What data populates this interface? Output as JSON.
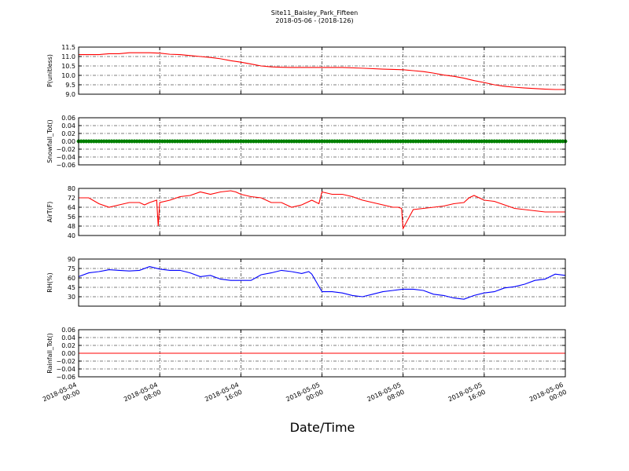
{
  "figure": {
    "title": "Site11_Baisley_Park_Fifteen",
    "subtitle": "2018-05-06 - (2018-126)",
    "xlabel": "Date/Time"
  },
  "chart_data": [
    {
      "type": "line",
      "ylabel": "P(unitless)",
      "color": "#ff0000",
      "ylim": [
        9.0,
        11.5
      ],
      "yticks": [
        "9.0",
        "9.5",
        "10.0",
        "10.5",
        "11.0",
        "11.5"
      ],
      "grid": true,
      "xlim_hours": [
        0,
        48
      ],
      "x_hours": [
        0,
        2,
        3,
        4,
        5,
        6,
        7,
        8,
        9,
        10,
        11,
        12,
        13,
        14,
        15,
        16,
        17,
        18,
        19,
        20,
        21,
        22,
        23,
        24,
        26,
        28,
        30,
        32,
        33,
        34,
        35,
        36,
        37,
        38,
        39,
        40,
        41,
        42,
        43,
        44,
        45,
        46,
        47,
        48
      ],
      "values": [
        11.1,
        11.1,
        11.15,
        11.15,
        11.2,
        11.2,
        11.2,
        11.18,
        11.12,
        11.1,
        11.05,
        11.0,
        10.95,
        10.88,
        10.78,
        10.7,
        10.6,
        10.5,
        10.45,
        10.43,
        10.42,
        10.42,
        10.42,
        10.42,
        10.42,
        10.38,
        10.33,
        10.3,
        10.25,
        10.2,
        10.12,
        10.02,
        9.95,
        9.85,
        9.72,
        9.62,
        9.5,
        9.42,
        9.37,
        9.33,
        9.3,
        9.27,
        9.25,
        9.25
      ]
    },
    {
      "type": "scatter",
      "ylabel": "Snowfall_Tot()",
      "color": "#008000",
      "ylim": [
        -0.06,
        0.06
      ],
      "yticks": [
        "−0.06",
        "−0.04",
        "−0.02",
        "0.00",
        "0.02",
        "0.04",
        "0.06"
      ],
      "grid": true,
      "xlim_hours": [
        0,
        48
      ],
      "constant_value": 0.0,
      "interval_minutes": 15
    },
    {
      "type": "line",
      "ylabel": "AirT(F)",
      "color": "#ff0000",
      "ylim": [
        40,
        80
      ],
      "yticks": [
        "40",
        "48",
        "56",
        "64",
        "72",
        "80"
      ],
      "grid": true,
      "xlim_hours": [
        0,
        48
      ],
      "x_hours": [
        0,
        1,
        2,
        3,
        4,
        5,
        6,
        6.5,
        7,
        7.7,
        7.85,
        8,
        9,
        10,
        11,
        12,
        13,
        14,
        15,
        15.5,
        16,
        17,
        18,
        19,
        20,
        21,
        22,
        23,
        23.7,
        24,
        25,
        26,
        27,
        28,
        29,
        30,
        31,
        31.5,
        31.85,
        32,
        33,
        34,
        35,
        36,
        37,
        38,
        38.5,
        39,
        40,
        41,
        42,
        43,
        44,
        45,
        46,
        47,
        48
      ],
      "values": [
        72,
        72,
        67,
        64,
        66,
        68,
        68,
        66,
        68,
        70,
        48,
        68,
        70,
        73,
        74,
        77,
        75,
        77,
        78,
        77,
        75,
        73,
        72,
        68,
        68,
        64,
        66,
        70,
        67,
        77,
        75,
        75,
        73,
        70,
        68,
        66,
        64,
        64,
        63,
        46,
        62,
        63,
        64,
        65,
        67,
        68,
        72,
        74,
        70,
        69,
        66,
        63,
        62,
        61,
        60,
        60,
        60
      ]
    },
    {
      "type": "line",
      "ylabel": "RH(%)",
      "color": "#0000ff",
      "ylim": [
        15,
        90
      ],
      "yticks": [
        "30",
        "45",
        "60",
        "75",
        "90"
      ],
      "grid": true,
      "xlim_hours": [
        0,
        48
      ],
      "x_hours": [
        0,
        1,
        2,
        3,
        4,
        5,
        6,
        7,
        8,
        9,
        10,
        11,
        12,
        13,
        14,
        15,
        16,
        17,
        18,
        19,
        20,
        21,
        22,
        22.7,
        23,
        24,
        25,
        26,
        27,
        28,
        29,
        30,
        31,
        32,
        33,
        34,
        35,
        36,
        37,
        38,
        39,
        40,
        41,
        42,
        43,
        44,
        45,
        46,
        47,
        48
      ],
      "values": [
        62,
        68,
        70,
        73,
        72,
        71,
        72,
        78,
        74,
        72,
        72,
        68,
        62,
        64,
        58,
        56,
        56,
        56,
        65,
        68,
        72,
        70,
        67,
        70,
        66,
        38,
        38,
        36,
        32,
        30,
        34,
        38,
        40,
        42,
        42,
        40,
        34,
        32,
        28,
        26,
        32,
        36,
        38,
        44,
        46,
        50,
        56,
        58,
        66,
        64
      ]
    },
    {
      "type": "line",
      "ylabel": "Rainfall_Tot()",
      "color": "#ff0000",
      "ylim": [
        -0.06,
        0.06
      ],
      "yticks": [
        "−0.06",
        "−0.04",
        "−0.02",
        "0.00",
        "0.02",
        "0.04",
        "0.06"
      ],
      "grid": true,
      "xlim_hours": [
        0,
        48
      ],
      "x_hours": [
        0,
        48
      ],
      "values": [
        0.0,
        0.0
      ]
    }
  ],
  "x_axis": {
    "tick_hours": [
      0,
      8,
      16,
      24,
      32,
      40,
      48
    ],
    "tick_labels": [
      [
        "2018-05-04",
        "00:00"
      ],
      [
        "2018-05-04",
        "08:00"
      ],
      [
        "2018-05-04",
        "16:00"
      ],
      [
        "2018-05-05",
        "00:00"
      ],
      [
        "2018-05-05",
        "08:00"
      ],
      [
        "2018-05-05",
        "16:00"
      ],
      [
        "2018-05-06",
        "00:00"
      ]
    ]
  }
}
